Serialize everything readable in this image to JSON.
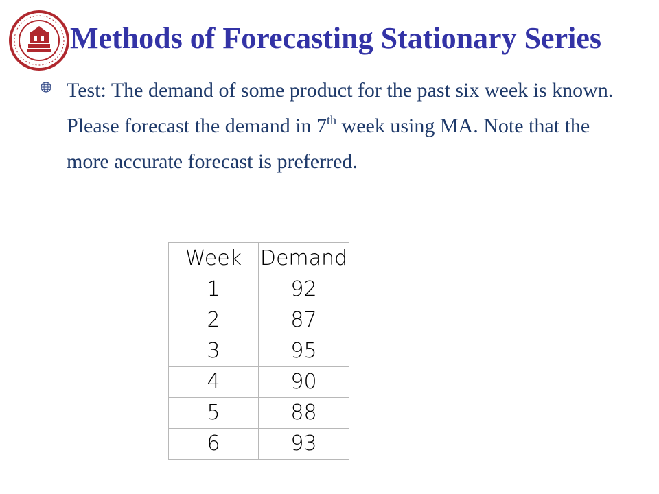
{
  "slide": {
    "title": "Methods of Forecasting Stationary Series",
    "body": {
      "text_before_sup": "Test: The demand of some product for the past six week is known. Please forecast the demand in 7",
      "sup": "th",
      "text_after_sup": " week using MA.  Note that the more accurate forecast is preferred."
    }
  },
  "table": {
    "headers": [
      "Week",
      "Demand"
    ],
    "rows": [
      [
        "1",
        "92"
      ],
      [
        "2",
        "87"
      ],
      [
        "3",
        "95"
      ],
      [
        "4",
        "90"
      ],
      [
        "5",
        "88"
      ],
      [
        "6",
        "93"
      ]
    ]
  },
  "icons": {
    "logo": "university-seal-icon",
    "bullet": "globe-bullet-icon"
  },
  "colors": {
    "title": "#3333a6",
    "body_text": "#1f3a6a",
    "logo": "#b0282e"
  }
}
